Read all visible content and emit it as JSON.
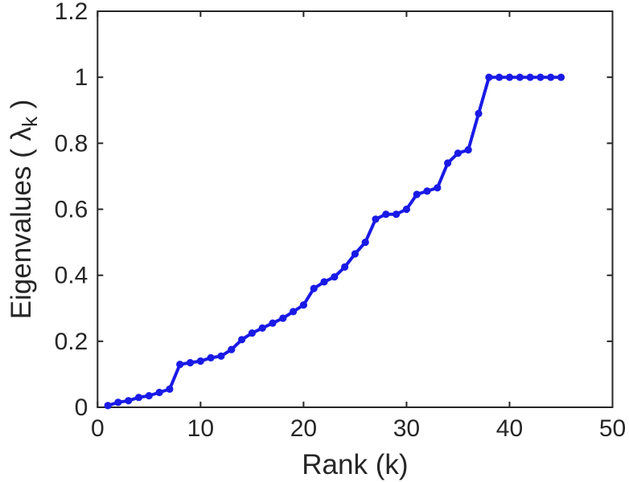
{
  "figure": {
    "background": "#ffffff",
    "axis_color": "#262626",
    "tick_label_color": "#262626"
  },
  "chart_data": {
    "type": "line",
    "title": "",
    "xlabel": "Rank (k)",
    "ylabel_prefix": "Eigenvalues ( ",
    "ylabel_symbol": "λ",
    "ylabel_subscript": "k",
    "ylabel_suffix": " )",
    "xlim": [
      0,
      50
    ],
    "ylim": [
      0,
      1.2
    ],
    "xticks": [
      0,
      10,
      20,
      30,
      40,
      50
    ],
    "xtick_labels": [
      "0",
      "10",
      "20",
      "30",
      "40",
      "50"
    ],
    "yticks": [
      0,
      0.2,
      0.4,
      0.6,
      0.8,
      1,
      1.2
    ],
    "ytick_labels": [
      "0",
      "0.2",
      "0.4",
      "0.6",
      "0.8",
      "1",
      "1.2"
    ],
    "grid": false,
    "legend": null,
    "box": true,
    "line_color": "#1a1ae6",
    "marker": "circle",
    "x": [
      1,
      2,
      3,
      4,
      5,
      6,
      7,
      8,
      9,
      10,
      11,
      12,
      13,
      14,
      15,
      16,
      17,
      18,
      19,
      20,
      21,
      22,
      23,
      24,
      25,
      26,
      27,
      28,
      29,
      30,
      31,
      32,
      33,
      34,
      35,
      36,
      37,
      38,
      39,
      40,
      41,
      42,
      43,
      44,
      45
    ],
    "y": [
      0.005,
      0.015,
      0.02,
      0.03,
      0.035,
      0.045,
      0.055,
      0.13,
      0.135,
      0.14,
      0.15,
      0.155,
      0.175,
      0.205,
      0.225,
      0.24,
      0.255,
      0.27,
      0.29,
      0.31,
      0.36,
      0.38,
      0.395,
      0.425,
      0.465,
      0.5,
      0.57,
      0.585,
      0.585,
      0.6,
      0.645,
      0.655,
      0.665,
      0.74,
      0.77,
      0.78,
      0.89,
      1.0,
      1.0,
      1.0,
      1.0,
      1.0,
      1.0,
      1.0,
      1.0
    ]
  }
}
